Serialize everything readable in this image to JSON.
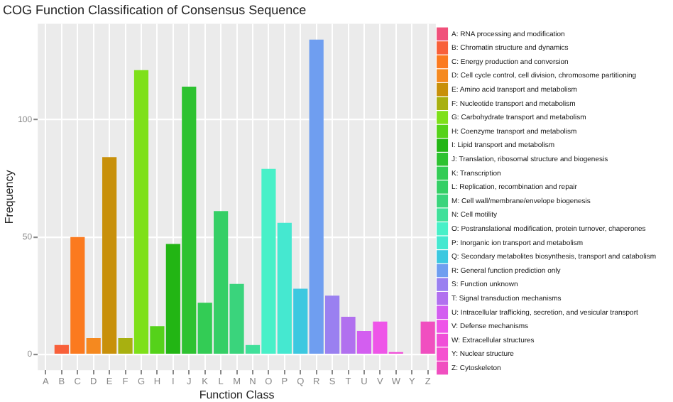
{
  "chart_data": {
    "type": "bar",
    "title": "COG Function Classification of Consensus Sequence",
    "xlabel": "Function Class",
    "ylabel": "Frequency",
    "categories": [
      "A",
      "B",
      "C",
      "D",
      "E",
      "F",
      "G",
      "H",
      "I",
      "J",
      "K",
      "L",
      "M",
      "N",
      "O",
      "P",
      "Q",
      "R",
      "S",
      "T",
      "U",
      "V",
      "W",
      "Y",
      "Z"
    ],
    "ylim": [
      -6.7,
      140.7
    ],
    "yticks": [
      0,
      50,
      100
    ],
    "grid": true,
    "legend": "right",
    "series": [
      {
        "name": "A: RNA processing and modification",
        "color": "#f0507a",
        "values": [
          0,
          null,
          null,
          null,
          null,
          null,
          null,
          null,
          null,
          null,
          null,
          null,
          null,
          null,
          null,
          null,
          null,
          null,
          null,
          null,
          null,
          null,
          null,
          null,
          null
        ]
      },
      {
        "name": "B: Chromatin structure and dynamics",
        "color": "#f8603a",
        "values": [
          null,
          4,
          null,
          null,
          null,
          null,
          null,
          null,
          null,
          null,
          null,
          null,
          null,
          null,
          null,
          null,
          null,
          null,
          null,
          null,
          null,
          null,
          null,
          null,
          null
        ]
      },
      {
        "name": "C: Energy production and conversion",
        "color": "#fb7a1f",
        "values": [
          null,
          null,
          50,
          null,
          null,
          null,
          null,
          null,
          null,
          null,
          null,
          null,
          null,
          null,
          null,
          null,
          null,
          null,
          null,
          null,
          null,
          null,
          null,
          null,
          null
        ]
      },
      {
        "name": "D: Cell cycle control, cell division, chromosome partitioning",
        "color": "#f5891f",
        "values": [
          null,
          null,
          null,
          7,
          null,
          null,
          null,
          null,
          null,
          null,
          null,
          null,
          null,
          null,
          null,
          null,
          null,
          null,
          null,
          null,
          null,
          null,
          null,
          null,
          null
        ]
      },
      {
        "name": "E: Amino acid transport and metabolism",
        "color": "#c8900a",
        "values": [
          null,
          null,
          null,
          null,
          84,
          null,
          null,
          null,
          null,
          null,
          null,
          null,
          null,
          null,
          null,
          null,
          null,
          null,
          null,
          null,
          null,
          null,
          null,
          null,
          null
        ]
      },
      {
        "name": "F: Nucleotide transport and metabolism",
        "color": "#a8b010",
        "values": [
          null,
          null,
          null,
          null,
          null,
          7,
          null,
          null,
          null,
          null,
          null,
          null,
          null,
          null,
          null,
          null,
          null,
          null,
          null,
          null,
          null,
          null,
          null,
          null,
          null
        ]
      },
      {
        "name": "G: Carbohydrate transport and metabolism",
        "color": "#7ee01a",
        "values": [
          null,
          null,
          null,
          null,
          null,
          null,
          121,
          null,
          null,
          null,
          null,
          null,
          null,
          null,
          null,
          null,
          null,
          null,
          null,
          null,
          null,
          null,
          null,
          null,
          null
        ]
      },
      {
        "name": "H: Coenzyme transport and metabolism",
        "color": "#55d21a",
        "values": [
          null,
          null,
          null,
          null,
          null,
          null,
          null,
          12,
          null,
          null,
          null,
          null,
          null,
          null,
          null,
          null,
          null,
          null,
          null,
          null,
          null,
          null,
          null,
          null,
          null
        ]
      },
      {
        "name": "I: Lipid transport and metabolism",
        "color": "#22b514",
        "values": [
          null,
          null,
          null,
          null,
          null,
          null,
          null,
          null,
          47,
          null,
          null,
          null,
          null,
          null,
          null,
          null,
          null,
          null,
          null,
          null,
          null,
          null,
          null,
          null,
          null
        ]
      },
      {
        "name": "J: Translation, ribosomal structure and biogenesis",
        "color": "#2dc230",
        "values": [
          null,
          null,
          null,
          null,
          null,
          null,
          null,
          null,
          null,
          114,
          null,
          null,
          null,
          null,
          null,
          null,
          null,
          null,
          null,
          null,
          null,
          null,
          null,
          null,
          null
        ]
      },
      {
        "name": "K: Transcription",
        "color": "#33cc55",
        "values": [
          null,
          null,
          null,
          null,
          null,
          null,
          null,
          null,
          null,
          null,
          22,
          null,
          null,
          null,
          null,
          null,
          null,
          null,
          null,
          null,
          null,
          null,
          null,
          null,
          null
        ]
      },
      {
        "name": "L: Replication, recombination and repair",
        "color": "#35cf66",
        "values": [
          null,
          null,
          null,
          null,
          null,
          null,
          null,
          null,
          null,
          null,
          null,
          61,
          null,
          null,
          null,
          null,
          null,
          null,
          null,
          null,
          null,
          null,
          null,
          null,
          null
        ]
      },
      {
        "name": "M: Cell wall/membrane/envelope biogenesis",
        "color": "#3ad47c",
        "values": [
          null,
          null,
          null,
          null,
          null,
          null,
          null,
          null,
          null,
          null,
          null,
          null,
          30,
          null,
          null,
          null,
          null,
          null,
          null,
          null,
          null,
          null,
          null,
          null,
          null
        ]
      },
      {
        "name": "N: Cell motility",
        "color": "#40e09a",
        "values": [
          null,
          null,
          null,
          null,
          null,
          null,
          null,
          null,
          null,
          null,
          null,
          null,
          null,
          4,
          null,
          null,
          null,
          null,
          null,
          null,
          null,
          null,
          null,
          null,
          null
        ]
      },
      {
        "name": "O: Postranslational modification, protein turnover, chaperones",
        "color": "#48f0c8",
        "values": [
          null,
          null,
          null,
          null,
          null,
          null,
          null,
          null,
          null,
          null,
          null,
          null,
          null,
          null,
          79,
          null,
          null,
          null,
          null,
          null,
          null,
          null,
          null,
          null,
          null
        ]
      },
      {
        "name": "P: Inorganic ion transport and metabolism",
        "color": "#45e8d0",
        "values": [
          null,
          null,
          null,
          null,
          null,
          null,
          null,
          null,
          null,
          null,
          null,
          null,
          null,
          null,
          null,
          56,
          null,
          null,
          null,
          null,
          null,
          null,
          null,
          null,
          null
        ]
      },
      {
        "name": "Q: Secondary metabolites biosynthesis, transport and catabolism",
        "color": "#3cc8e0",
        "values": [
          null,
          null,
          null,
          null,
          null,
          null,
          null,
          null,
          null,
          null,
          null,
          null,
          null,
          null,
          null,
          null,
          28,
          null,
          null,
          null,
          null,
          null,
          null,
          null,
          null
        ]
      },
      {
        "name": "R: General function prediction only",
        "color": "#6f9ef0",
        "values": [
          null,
          null,
          null,
          null,
          null,
          null,
          null,
          null,
          null,
          null,
          null,
          null,
          null,
          null,
          null,
          null,
          null,
          134,
          null,
          null,
          null,
          null,
          null,
          null,
          null
        ]
      },
      {
        "name": "S: Function unknown",
        "color": "#9a80f0",
        "values": [
          null,
          null,
          null,
          null,
          null,
          null,
          null,
          null,
          null,
          null,
          null,
          null,
          null,
          null,
          null,
          null,
          null,
          null,
          25,
          null,
          null,
          null,
          null,
          null,
          null
        ]
      },
      {
        "name": "T: Signal transduction mechanisms",
        "color": "#b170ef",
        "values": [
          null,
          null,
          null,
          null,
          null,
          null,
          null,
          null,
          null,
          null,
          null,
          null,
          null,
          null,
          null,
          null,
          null,
          null,
          null,
          16,
          null,
          null,
          null,
          null,
          null
        ]
      },
      {
        "name": "U: Intracellular trafficking, secretion, and vesicular transport",
        "color": "#d35ef0",
        "values": [
          null,
          null,
          null,
          null,
          null,
          null,
          null,
          null,
          null,
          null,
          null,
          null,
          null,
          null,
          null,
          null,
          null,
          null,
          null,
          null,
          10,
          null,
          null,
          null,
          null
        ]
      },
      {
        "name": "V: Defense mechanisms",
        "color": "#ee55e8",
        "values": [
          null,
          null,
          null,
          null,
          null,
          null,
          null,
          null,
          null,
          null,
          null,
          null,
          null,
          null,
          null,
          null,
          null,
          null,
          null,
          null,
          null,
          14,
          null,
          null,
          null
        ]
      },
      {
        "name": "W: Extracellular structures",
        "color": "#f04fd8",
        "values": [
          null,
          null,
          null,
          null,
          null,
          null,
          null,
          null,
          null,
          null,
          null,
          null,
          null,
          null,
          null,
          null,
          null,
          null,
          null,
          null,
          null,
          null,
          1,
          null,
          null
        ]
      },
      {
        "name": "Y: Nuclear structure",
        "color": "#f550d0",
        "values": [
          null,
          null,
          null,
          null,
          null,
          null,
          null,
          null,
          null,
          null,
          null,
          null,
          null,
          null,
          null,
          null,
          null,
          null,
          null,
          null,
          null,
          null,
          null,
          0,
          null
        ]
      },
      {
        "name": "Z: Cytoskeleton",
        "color": "#f04fc0",
        "values": [
          null,
          null,
          null,
          null,
          null,
          null,
          null,
          null,
          null,
          null,
          null,
          null,
          null,
          null,
          null,
          null,
          null,
          null,
          null,
          null,
          null,
          null,
          null,
          null,
          14
        ]
      }
    ]
  }
}
